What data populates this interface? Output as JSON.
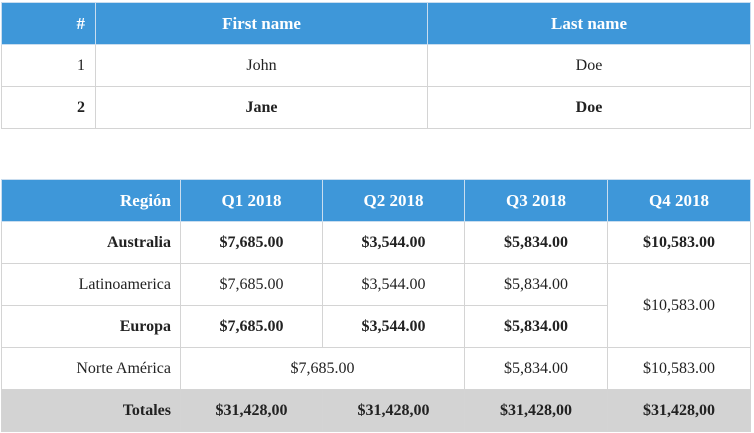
{
  "table1": {
    "headers": [
      "#",
      "First name",
      "Last name"
    ],
    "rows": [
      {
        "num": "1",
        "first": "John",
        "last": "Doe"
      },
      {
        "num": "2",
        "first": "Jane",
        "last": "Doe"
      }
    ],
    "header_color": "#3e97d9"
  },
  "table2": {
    "headers": [
      "Región",
      "Q1 2018",
      "Q2 2018",
      "Q3 2018",
      "Q4 2018"
    ],
    "rows": [
      {
        "region": "Australia",
        "q1": "$7,685.00",
        "q2": "$3,544.00",
        "q3": "$5,834.00",
        "q4": "$10,583.00"
      },
      {
        "region": "Latinoamerica",
        "q1": "$7,685.00",
        "q2": "$3,544.00",
        "q3": "$5,834.00",
        "q4": "$10,583.00"
      },
      {
        "region": "Europa",
        "q1": "$7,685.00",
        "q2": "$3,544.00",
        "q3": "$5,834.00"
      },
      {
        "region": "Norte América",
        "q1q2": "$7,685.00",
        "q3": "$5,834.00",
        "q4": "$10,583.00"
      }
    ],
    "totals": {
      "label": "Totales",
      "q1": "$31,428,00",
      "q2": "$31,428,00",
      "q3": "$31,428,00",
      "q4": "$31,428,00"
    },
    "totals_color": "#d3d3d3"
  }
}
